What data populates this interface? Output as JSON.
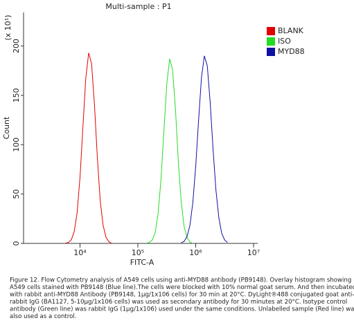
{
  "chart_data": {
    "type": "line",
    "title": "Multi-sample : P1",
    "xlabel": "FITC-A",
    "ylabel": "Count",
    "y_multiplier": "(x 10¹)",
    "xscale": "log",
    "xlim": [
      1000,
      10000000
    ],
    "ylim": [
      0,
      234
    ],
    "xticks": [
      {
        "value": 10000,
        "label": "10⁴"
      },
      {
        "value": 100000,
        "label": "10⁵"
      },
      {
        "value": 1000000,
        "label": "10⁶"
      },
      {
        "value": 10000000,
        "label": "10⁷"
      }
    ],
    "yticks": [
      0,
      50,
      100,
      150,
      200
    ],
    "legend": "upper right",
    "series": [
      {
        "name": "BLANK",
        "color": "#e00000",
        "x": [
          5623,
          6310,
          7079,
          7943,
          8913,
          10000,
          11220,
          12589,
          14125,
          15849,
          17783,
          19953,
          22387,
          25119,
          28184,
          31623,
          35481
        ],
        "values": [
          0.2,
          1,
          3.7,
          12,
          31,
          67,
          118,
          167,
          193,
          182,
          140,
          86,
          43,
          18,
          6,
          1.6,
          0
        ]
      },
      {
        "name": "ISO",
        "color": "#22dd22",
        "x": [
          141254,
          158489,
          177828,
          199526,
          223872,
          251189,
          281838,
          316228,
          354813,
          398107,
          446684,
          501187,
          562341,
          630957,
          707946,
          794328,
          891251
        ],
        "values": [
          0.2,
          1,
          3.6,
          11,
          30,
          65,
          114,
          162,
          187,
          176,
          136,
          83,
          42,
          17,
          6,
          1.5,
          0
        ]
      },
      {
        "name": "MYD88",
        "color": "#1010a0",
        "x": [
          562341,
          630957,
          707946,
          794328,
          891251,
          1000000,
          1122018,
          1258925,
          1412538,
          1584893,
          1778279,
          1995262,
          2238721,
          2511886,
          2818383,
          3162278,
          3548134
        ],
        "values": [
          0.6,
          2,
          7,
          18,
          41,
          78,
          125,
          168,
          190,
          180,
          143,
          96,
          54,
          26,
          10,
          3.4,
          1
        ]
      }
    ]
  },
  "caption": [
    "Figure 12. Flow Cytometry analysis of A549 cells using anti-MYD88 antibody (PB9148).  Overlay histogram showing",
    "A549 cells stained with PB9148 (Blue line).The cells were blocked with 10% normal goat serum. And then incubated",
    "with rabbit anti-MYD88 Antibody (PB9148, 1µg/1x106 cells) for 30 min at 20°C. DyLight®488 conjugated goat anti-",
    "rabbit IgG (BA1127, 5-10µg/1x106 cells) was used as secondary antibody for 30 minutes at 20°C. Isotype control",
    "antibody (Green line) was rabbit IgG (1µg/1x106) used under the same conditions. Unlabelled sample (Red line) was",
    "also used as a control."
  ]
}
